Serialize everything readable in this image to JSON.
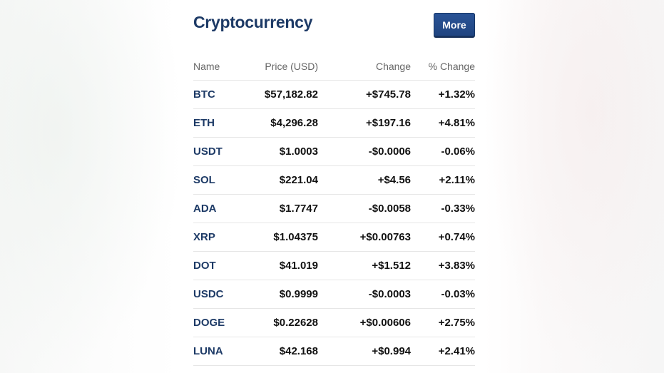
{
  "widget": {
    "title": "Cryptocurrency",
    "more_label": "More"
  },
  "table": {
    "headers": {
      "name": "Name",
      "price": "Price (USD)",
      "change": "Change",
      "pct_change": "% Change"
    },
    "rows": [
      {
        "name": "BTC",
        "price": "$57,182.82",
        "change": "+$745.78",
        "pct_change": "+1.32%",
        "direction": "up"
      },
      {
        "name": "ETH",
        "price": "$4,296.28",
        "change": "+$197.16",
        "pct_change": "+4.81%",
        "direction": "up"
      },
      {
        "name": "USDT",
        "price": "$1.0003",
        "change": "-$0.0006",
        "pct_change": "-0.06%",
        "direction": "down"
      },
      {
        "name": "SOL",
        "price": "$221.04",
        "change": "+$4.56",
        "pct_change": "+2.11%",
        "direction": "up"
      },
      {
        "name": "ADA",
        "price": "$1.7747",
        "change": "-$0.0058",
        "pct_change": "-0.33%",
        "direction": "down"
      },
      {
        "name": "XRP",
        "price": "$1.04375",
        "change": "+$0.00763",
        "pct_change": "+0.74%",
        "direction": "up"
      },
      {
        "name": "DOT",
        "price": "$41.019",
        "change": "+$1.512",
        "pct_change": "+3.83%",
        "direction": "up"
      },
      {
        "name": "USDC",
        "price": "$0.9999",
        "change": "-$0.0003",
        "pct_change": "-0.03%",
        "direction": "down"
      },
      {
        "name": "DOGE",
        "price": "$0.22628",
        "change": "+$0.00606",
        "pct_change": "+2.75%",
        "direction": "up"
      },
      {
        "name": "LUNA",
        "price": "$42.168",
        "change": "+$0.994",
        "pct_change": "+2.41%",
        "direction": "up"
      }
    ]
  },
  "colors": {
    "title": "#1d3a66",
    "button": "#1f4480",
    "positive": "#3b7d12",
    "negative": "#c8102e"
  }
}
